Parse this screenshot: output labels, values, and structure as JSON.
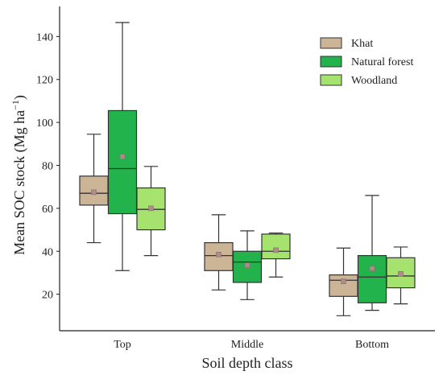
{
  "chart_data": {
    "type": "box",
    "title": "",
    "xlabel": "Soil depth class",
    "ylabel": "Mean SOC stock (Mg ha",
    "ylabel_sup": "−1",
    "ylabel_close": ")",
    "categories": [
      "Top",
      "Middle",
      "Bottom"
    ],
    "yticks": [
      20,
      40,
      60,
      80,
      100,
      120,
      140
    ],
    "ylim": [
      3,
      154
    ],
    "grid": false,
    "legend_position": "top-right",
    "series": [
      {
        "name": "Khat",
        "color": "#cbb596",
        "boxes": [
          {
            "whisker_low": 44,
            "q1": 61.5,
            "median": 67,
            "q3": 75,
            "whisker_high": 94.5,
            "mean": 67.5
          },
          {
            "whisker_low": 22,
            "q1": 31,
            "median": 38,
            "q3": 44,
            "whisker_high": 57,
            "mean": 38.5
          },
          {
            "whisker_low": 10,
            "q1": 19,
            "median": 26.5,
            "q3": 29,
            "whisker_high": 41.5,
            "mean": 26
          }
        ]
      },
      {
        "name": "Natural forest",
        "color": "#22b34c",
        "boxes": [
          {
            "whisker_low": 31,
            "q1": 57.5,
            "median": 78.5,
            "q3": 105.5,
            "whisker_high": 146.5,
            "mean": 84
          },
          {
            "whisker_low": 17.5,
            "q1": 25.5,
            "median": 35,
            "q3": 40,
            "whisker_high": 49.5,
            "mean": 33.5
          },
          {
            "whisker_low": 12.5,
            "q1": 16,
            "median": 28,
            "q3": 38,
            "whisker_high": 66,
            "mean": 32
          }
        ]
      },
      {
        "name": "Woodland",
        "color": "#a6e36e",
        "boxes": [
          {
            "whisker_low": 38,
            "q1": 50,
            "median": 59.5,
            "q3": 69.5,
            "whisker_high": 79.5,
            "mean": 60
          },
          {
            "whisker_low": 28,
            "q1": 36.5,
            "median": 40,
            "q3": 48,
            "whisker_high": 48.5,
            "mean": 40.5
          },
          {
            "whisker_low": 15.5,
            "q1": 23,
            "median": 28.5,
            "q3": 37,
            "whisker_high": 42,
            "mean": 29.5
          }
        ]
      }
    ],
    "mean_marker_color": "#b08b8b"
  }
}
